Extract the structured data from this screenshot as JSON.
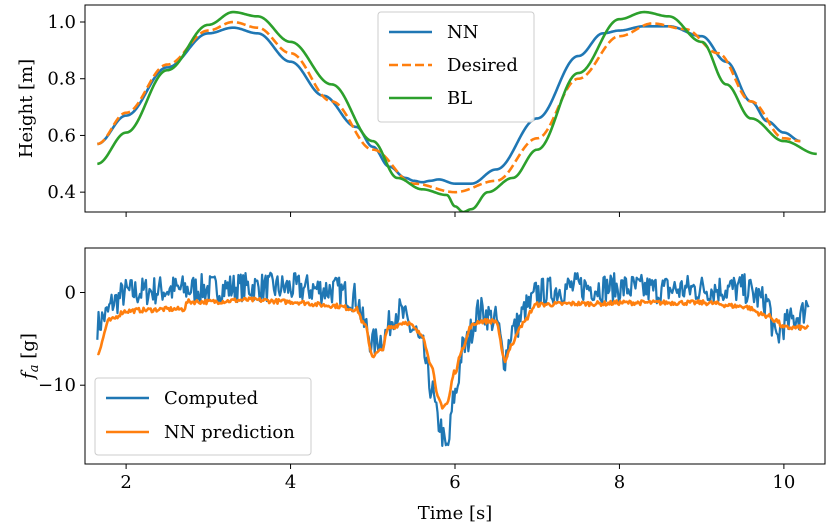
{
  "chart_data": [
    {
      "type": "line",
      "title": "",
      "xlabel": "",
      "ylabel": "Height [m]",
      "xlim": [
        1.5,
        10.5
      ],
      "ylim": [
        0.33,
        1.06
      ],
      "xticks": [
        2,
        4,
        6,
        8,
        10
      ],
      "yticks": [
        0.4,
        0.6,
        0.8,
        1.0
      ],
      "ytick_labels": [
        "0.4",
        "0.6",
        "0.8",
        "1.0"
      ],
      "show_xtick_labels": false,
      "legend_position": "top-center",
      "series": [
        {
          "name": "NN",
          "color": "#1f77b4",
          "style": "solid",
          "x": [
            1.65,
            2.0,
            2.5,
            3.0,
            3.3,
            3.6,
            4.0,
            4.4,
            4.8,
            5.0,
            5.2,
            5.4,
            5.5,
            5.6,
            5.7,
            5.8,
            6.0,
            6.2,
            6.5,
            7.0,
            7.5,
            7.8,
            8.0,
            8.3,
            8.6,
            9.0,
            9.3,
            9.6,
            9.8,
            10.0,
            10.2
          ],
          "y": [
            0.57,
            0.67,
            0.84,
            0.96,
            0.98,
            0.96,
            0.86,
            0.74,
            0.63,
            0.56,
            0.49,
            0.45,
            0.44,
            0.435,
            0.44,
            0.445,
            0.43,
            0.43,
            0.48,
            0.66,
            0.88,
            0.96,
            0.97,
            0.985,
            0.985,
            0.95,
            0.86,
            0.72,
            0.65,
            0.61,
            0.58
          ]
        },
        {
          "name": "Desired",
          "color": "#ff7f0e",
          "style": "dashed",
          "x": [
            1.65,
            2.0,
            2.5,
            3.0,
            3.3,
            3.6,
            4.0,
            4.5,
            5.0,
            5.5,
            6.0,
            6.5,
            7.0,
            7.5,
            8.0,
            8.4,
            8.8,
            9.2,
            9.6,
            10.0,
            10.2
          ],
          "y": [
            0.57,
            0.68,
            0.85,
            0.97,
            1.0,
            0.98,
            0.89,
            0.72,
            0.55,
            0.43,
            0.4,
            0.44,
            0.59,
            0.8,
            0.95,
            0.995,
            0.975,
            0.89,
            0.72,
            0.59,
            0.58
          ]
        },
        {
          "name": "BL",
          "color": "#2ca02c",
          "style": "solid",
          "x": [
            1.65,
            2.0,
            2.5,
            3.0,
            3.3,
            3.6,
            4.0,
            4.5,
            5.0,
            5.3,
            5.6,
            5.9,
            6.0,
            6.1,
            6.2,
            6.4,
            6.7,
            7.0,
            7.5,
            8.0,
            8.3,
            8.6,
            9.0,
            9.3,
            9.6,
            10.0,
            10.4
          ],
          "y": [
            0.5,
            0.61,
            0.83,
            0.99,
            1.035,
            1.02,
            0.93,
            0.78,
            0.58,
            0.45,
            0.41,
            0.39,
            0.35,
            0.33,
            0.34,
            0.4,
            0.45,
            0.55,
            0.82,
            1.01,
            1.035,
            1.02,
            0.93,
            0.78,
            0.66,
            0.58,
            0.535
          ]
        }
      ]
    },
    {
      "type": "line",
      "title": "",
      "xlabel": "Time [s]",
      "ylabel": "f_a [g]",
      "ylabel_main": "f",
      "ylabel_sub": "a",
      "ylabel_unit": " [g]",
      "xlim": [
        1.5,
        10.5
      ],
      "ylim": [
        -18.5,
        4.8
      ],
      "xticks": [
        2,
        4,
        6,
        8,
        10
      ],
      "xtick_labels": [
        "2",
        "4",
        "6",
        "8",
        "10"
      ],
      "yticks": [
        -10,
        0
      ],
      "ytick_labels": [
        "−10",
        "0"
      ],
      "legend_position": "bottom-left",
      "series": [
        {
          "name": "Computed",
          "color": "#1f77b4",
          "style": "solid",
          "noise_amplitude": 1.6,
          "x": [
            1.65,
            1.75,
            1.85,
            2.0,
            2.5,
            3.0,
            3.5,
            4.0,
            4.5,
            4.8,
            4.9,
            5.0,
            5.1,
            5.3,
            5.5,
            5.6,
            5.7,
            5.8,
            5.9,
            6.0,
            6.1,
            6.3,
            6.5,
            6.6,
            6.7,
            6.9,
            7.0,
            7.5,
            8.0,
            8.5,
            9.0,
            9.5,
            9.8,
            9.9,
            10.0,
            10.2,
            10.3
          ],
          "y": [
            -3.5,
            -2.5,
            -1,
            0,
            0.3,
            0.4,
            0.6,
            0.5,
            0.3,
            -0.5,
            -3.5,
            -5.5,
            -5,
            -2,
            -4,
            -6,
            -10,
            -14,
            -17,
            -11,
            -6,
            -2,
            -3,
            -7,
            -4,
            -1.5,
            0,
            0.6,
            0.5,
            0.3,
            0.4,
            0.4,
            -1,
            -5,
            -3.5,
            -2.5,
            -1
          ]
        },
        {
          "name": "NN prediction",
          "color": "#ff7f0e",
          "style": "solid",
          "noise_amplitude": 0.25,
          "x": [
            1.65,
            1.8,
            2.0,
            2.2,
            2.5,
            2.7,
            2.75,
            3.0,
            3.5,
            4.0,
            4.5,
            4.8,
            4.9,
            5.0,
            5.1,
            5.2,
            5.4,
            5.6,
            5.7,
            5.8,
            5.85,
            5.9,
            6.0,
            6.1,
            6.2,
            6.3,
            6.4,
            6.5,
            6.6,
            6.7,
            6.8,
            7.0,
            7.5,
            7.8,
            8.0,
            8.5,
            9.0,
            9.5,
            9.8,
            9.9,
            10.0,
            10.3
          ],
          "y": [
            -6.5,
            -3,
            -2,
            -1.9,
            -1.8,
            -1.8,
            -1,
            -1,
            -0.8,
            -1,
            -1.4,
            -1.8,
            -3.5,
            -6.8,
            -6.3,
            -3.8,
            -3.2,
            -4.5,
            -7.5,
            -11.5,
            -12.3,
            -12,
            -8.5,
            -5.8,
            -3.6,
            -3.1,
            -3.1,
            -3.1,
            -7.3,
            -5.5,
            -3.5,
            -1.3,
            -1.2,
            -1.2,
            -1.1,
            -1.1,
            -1.1,
            -1.5,
            -2.5,
            -3,
            -3.8,
            -3.8
          ]
        }
      ]
    }
  ]
}
